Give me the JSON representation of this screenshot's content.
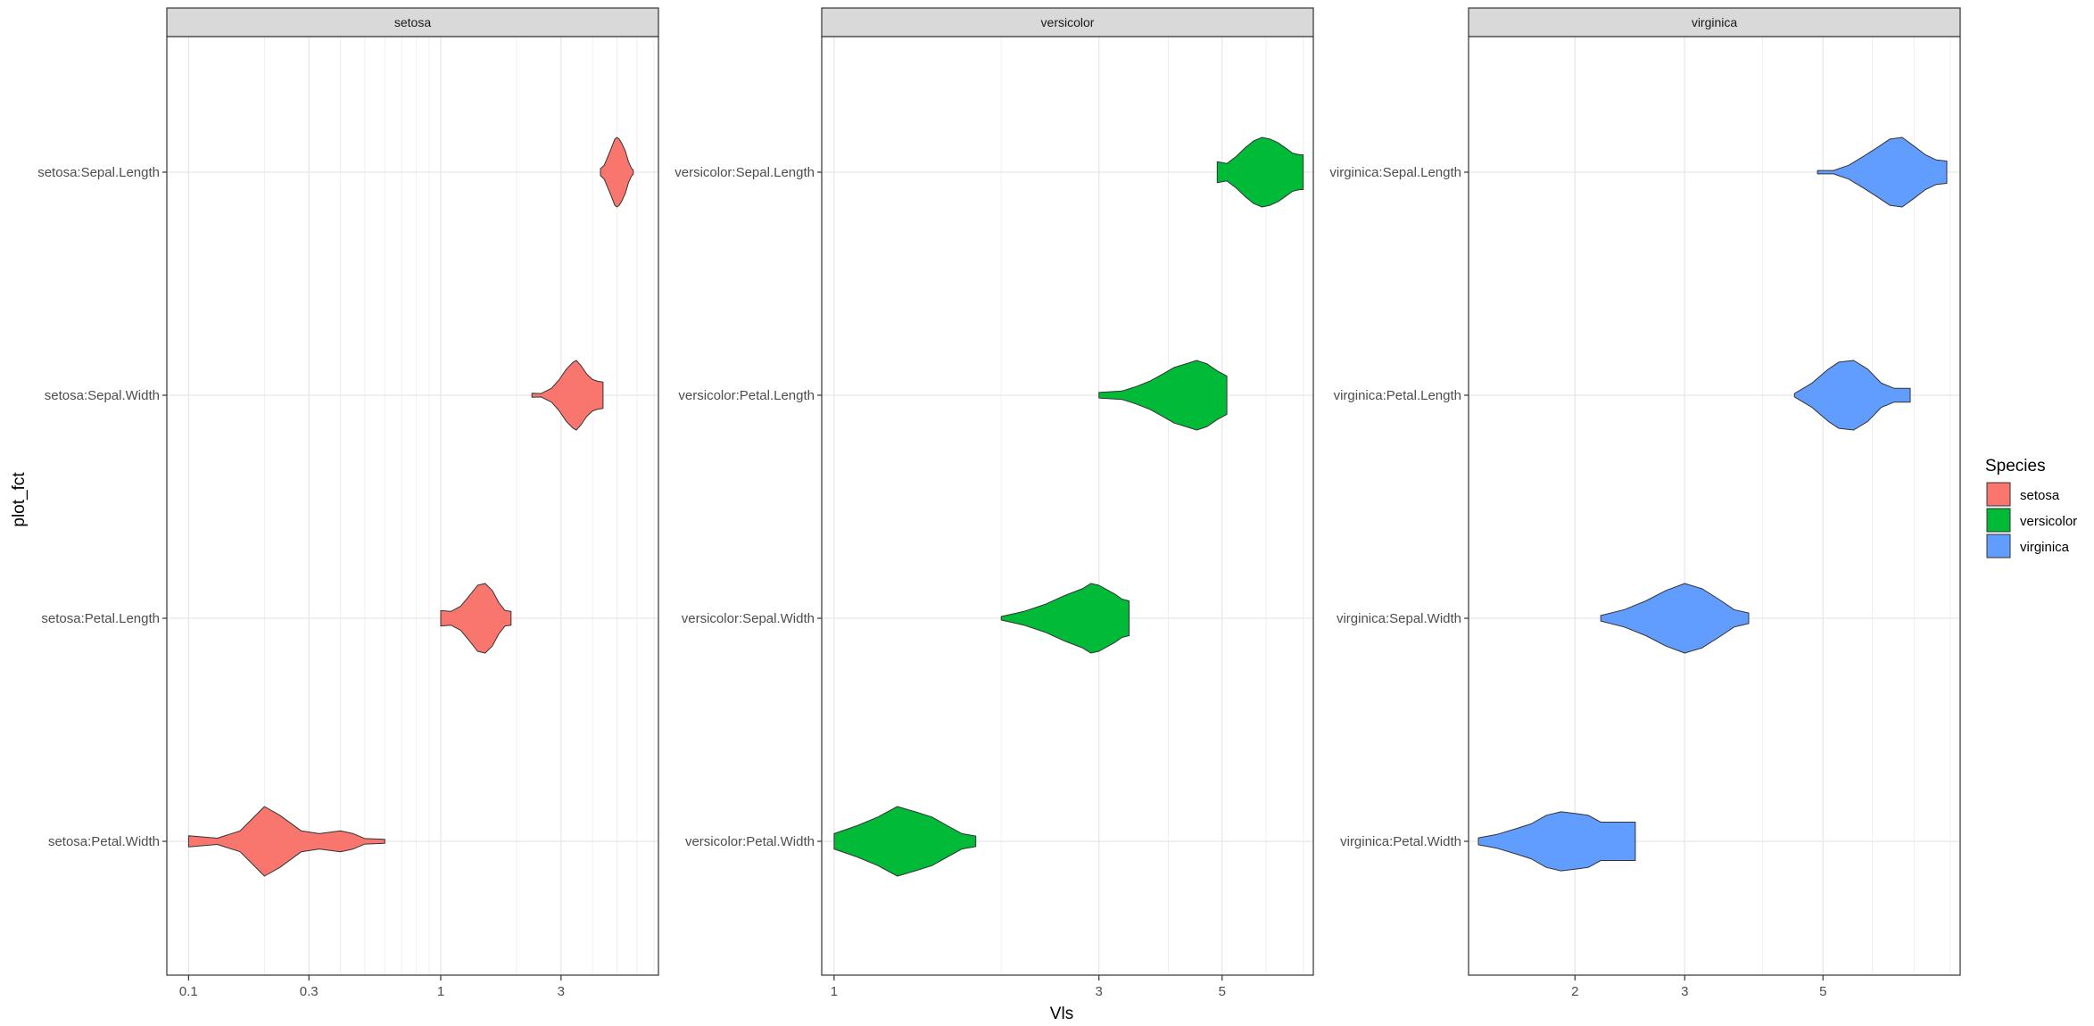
{
  "chart_data": {
    "type": "violin",
    "xlabel": "Vls",
    "ylabel": "plot_fct",
    "x_scale": "log10",
    "legend": {
      "title": "Species",
      "position": "right",
      "entries": [
        {
          "name": "setosa",
          "color": "#F8766D"
        },
        {
          "name": "versicolor",
          "color": "#00BA38"
        },
        {
          "name": "virginica",
          "color": "#619CFF"
        }
      ]
    },
    "grid": true,
    "panels": [
      {
        "facet": "setosa",
        "color": "#F8766D",
        "xlim": [
          0.082,
          7.3
        ],
        "x_ticks": [
          0.1,
          0.3,
          1,
          3
        ],
        "x_tick_labels": [
          "0.1",
          "0.3",
          "1",
          "3"
        ],
        "y_categories": [
          "setosa:Sepal.Length",
          "setosa:Sepal.Width",
          "setosa:Petal.Length",
          "setosa:Petal.Width"
        ],
        "violins": [
          {
            "category": "setosa:Sepal.Length",
            "min": 4.3,
            "max": 5.8,
            "profile": [
              [
                4.3,
                0.1
              ],
              [
                4.45,
                0.2
              ],
              [
                4.6,
                0.45
              ],
              [
                4.75,
                0.7
              ],
              [
                4.9,
                0.95
              ],
              [
                5.0,
                1.0
              ],
              [
                5.1,
                0.95
              ],
              [
                5.25,
                0.8
              ],
              [
                5.4,
                0.6
              ],
              [
                5.55,
                0.3
              ],
              [
                5.7,
                0.12
              ],
              [
                5.8,
                0.06
              ]
            ]
          },
          {
            "category": "setosa:Sepal.Width",
            "min": 2.3,
            "max": 4.4,
            "profile": [
              [
                2.3,
                0.06
              ],
              [
                2.5,
                0.05
              ],
              [
                2.75,
                0.2
              ],
              [
                2.95,
                0.45
              ],
              [
                3.15,
                0.75
              ],
              [
                3.35,
                0.95
              ],
              [
                3.45,
                1.0
              ],
              [
                3.6,
                0.85
              ],
              [
                3.8,
                0.6
              ],
              [
                4.0,
                0.45
              ],
              [
                4.2,
                0.4
              ],
              [
                4.4,
                0.38
              ]
            ]
          },
          {
            "category": "setosa:Petal.Length",
            "min": 1.0,
            "max": 1.9,
            "profile": [
              [
                1.0,
                0.22
              ],
              [
                1.1,
                0.2
              ],
              [
                1.2,
                0.35
              ],
              [
                1.3,
                0.65
              ],
              [
                1.4,
                0.95
              ],
              [
                1.5,
                1.0
              ],
              [
                1.6,
                0.8
              ],
              [
                1.7,
                0.45
              ],
              [
                1.8,
                0.22
              ],
              [
                1.9,
                0.2
              ]
            ]
          },
          {
            "category": "setosa:Petal.Width",
            "min": 0.1,
            "max": 0.6,
            "profile": [
              [
                0.1,
                0.16
              ],
              [
                0.13,
                0.09
              ],
              [
                0.16,
                0.3
              ],
              [
                0.2,
                1.0
              ],
              [
                0.23,
                0.75
              ],
              [
                0.28,
                0.3
              ],
              [
                0.33,
                0.22
              ],
              [
                0.4,
                0.3
              ],
              [
                0.45,
                0.22
              ],
              [
                0.5,
                0.08
              ],
              [
                0.6,
                0.06
              ]
            ]
          }
        ]
      },
      {
        "facet": "versicolor",
        "color": "#00BA38",
        "xlim": [
          0.95,
          7.3
        ],
        "x_ticks": [
          1,
          3,
          5
        ],
        "x_tick_labels": [
          "1",
          "3",
          "5"
        ],
        "y_categories": [
          "versicolor:Sepal.Length",
          "versicolor:Petal.Length",
          "versicolor:Sepal.Width",
          "versicolor:Petal.Width"
        ],
        "violins": [
          {
            "category": "versicolor:Sepal.Length",
            "min": 4.9,
            "max": 7.0,
            "profile": [
              [
                4.9,
                0.3
              ],
              [
                5.1,
                0.25
              ],
              [
                5.3,
                0.45
              ],
              [
                5.5,
                0.7
              ],
              [
                5.7,
                0.9
              ],
              [
                5.9,
                1.0
              ],
              [
                6.1,
                0.95
              ],
              [
                6.3,
                0.85
              ],
              [
                6.5,
                0.7
              ],
              [
                6.7,
                0.55
              ],
              [
                6.9,
                0.5
              ],
              [
                7.0,
                0.5
              ]
            ]
          },
          {
            "category": "versicolor:Petal.Length",
            "min": 3.0,
            "max": 5.1,
            "profile": [
              [
                3.0,
                0.08
              ],
              [
                3.3,
                0.12
              ],
              [
                3.5,
                0.25
              ],
              [
                3.7,
                0.4
              ],
              [
                3.9,
                0.6
              ],
              [
                4.1,
                0.8
              ],
              [
                4.3,
                0.9
              ],
              [
                4.5,
                1.0
              ],
              [
                4.7,
                0.9
              ],
              [
                4.9,
                0.7
              ],
              [
                5.1,
                0.55
              ]
            ]
          },
          {
            "category": "versicolor:Sepal.Width",
            "min": 2.0,
            "max": 3.4,
            "profile": [
              [
                2.0,
                0.05
              ],
              [
                2.2,
                0.2
              ],
              [
                2.4,
                0.4
              ],
              [
                2.6,
                0.65
              ],
              [
                2.8,
                0.85
              ],
              [
                2.9,
                1.0
              ],
              [
                3.0,
                0.95
              ],
              [
                3.2,
                0.7
              ],
              [
                3.3,
                0.55
              ],
              [
                3.4,
                0.5
              ]
            ]
          },
          {
            "category": "versicolor:Petal.Width",
            "min": 1.0,
            "max": 1.8,
            "profile": [
              [
                1.0,
                0.22
              ],
              [
                1.1,
                0.45
              ],
              [
                1.2,
                0.7
              ],
              [
                1.3,
                1.0
              ],
              [
                1.4,
                0.85
              ],
              [
                1.5,
                0.7
              ],
              [
                1.6,
                0.45
              ],
              [
                1.7,
                0.22
              ],
              [
                1.8,
                0.15
              ]
            ]
          }
        ]
      },
      {
        "facet": "virginica",
        "color": "#619CFF",
        "xlim": [
          1.35,
          8.3
        ],
        "x_ticks": [
          2,
          3,
          5
        ],
        "x_tick_labels": [
          "2",
          "3",
          "5"
        ],
        "y_categories": [
          "virginica:Sepal.Length",
          "virginica:Petal.Length",
          "virginica:Sepal.Width",
          "virginica:Petal.Width"
        ],
        "violins": [
          {
            "category": "virginica:Sepal.Length",
            "min": 4.9,
            "max": 7.9,
            "profile": [
              [
                4.9,
                0.05
              ],
              [
                5.2,
                0.05
              ],
              [
                5.5,
                0.2
              ],
              [
                5.8,
                0.45
              ],
              [
                6.1,
                0.7
              ],
              [
                6.4,
                0.95
              ],
              [
                6.7,
                1.0
              ],
              [
                7.0,
                0.75
              ],
              [
                7.3,
                0.5
              ],
              [
                7.6,
                0.35
              ],
              [
                7.9,
                0.32
              ]
            ]
          },
          {
            "category": "virginica:Petal.Length",
            "min": 4.5,
            "max": 6.9,
            "profile": [
              [
                4.5,
                0.05
              ],
              [
                4.8,
                0.35
              ],
              [
                5.1,
                0.75
              ],
              [
                5.3,
                0.95
              ],
              [
                5.6,
                1.0
              ],
              [
                5.9,
                0.75
              ],
              [
                6.2,
                0.35
              ],
              [
                6.5,
                0.2
              ],
              [
                6.7,
                0.2
              ],
              [
                6.9,
                0.2
              ]
            ]
          },
          {
            "category": "virginica:Sepal.Width",
            "min": 2.2,
            "max": 3.8,
            "profile": [
              [
                2.2,
                0.08
              ],
              [
                2.4,
                0.25
              ],
              [
                2.6,
                0.5
              ],
              [
                2.8,
                0.8
              ],
              [
                3.0,
                1.0
              ],
              [
                3.2,
                0.85
              ],
              [
                3.4,
                0.55
              ],
              [
                3.6,
                0.25
              ],
              [
                3.8,
                0.15
              ]
            ]
          },
          {
            "category": "virginica:Petal.Width",
            "min": 1.4,
            "max": 2.5,
            "profile": [
              [
                1.4,
                0.1
              ],
              [
                1.5,
                0.2
              ],
              [
                1.6,
                0.35
              ],
              [
                1.7,
                0.5
              ],
              [
                1.8,
                0.75
              ],
              [
                1.9,
                0.85
              ],
              [
                2.0,
                0.8
              ],
              [
                2.1,
                0.75
              ],
              [
                2.2,
                0.55
              ],
              [
                2.3,
                0.55
              ],
              [
                2.4,
                0.55
              ],
              [
                2.5,
                0.55
              ]
            ]
          }
        ]
      }
    ]
  }
}
